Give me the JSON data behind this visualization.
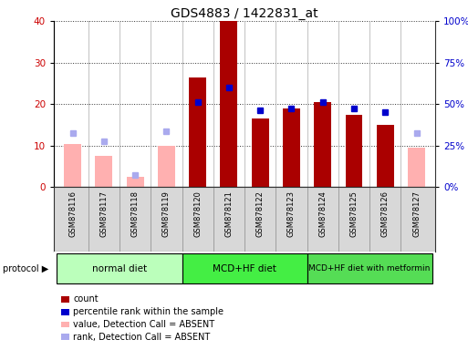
{
  "title": "GDS4883 / 1422831_at",
  "samples": [
    "GSM878116",
    "GSM878117",
    "GSM878118",
    "GSM878119",
    "GSM878120",
    "GSM878121",
    "GSM878122",
    "GSM878123",
    "GSM878124",
    "GSM878125",
    "GSM878126",
    "GSM878127"
  ],
  "count_values": [
    null,
    null,
    null,
    null,
    26.5,
    40.0,
    16.5,
    19.0,
    20.5,
    17.5,
    15.0,
    null
  ],
  "percentile_values_left": [
    null,
    null,
    null,
    null,
    20.5,
    24.0,
    18.5,
    19.0,
    20.5,
    19.0,
    18.0,
    null
  ],
  "absent_value_values": [
    10.5,
    7.5,
    2.5,
    10.0,
    null,
    null,
    null,
    null,
    null,
    null,
    null,
    9.5
  ],
  "absent_rank_values": [
    13.0,
    11.0,
    3.0,
    13.5,
    null,
    null,
    null,
    null,
    null,
    null,
    null,
    13.0
  ],
  "count_color": "#aa0000",
  "percentile_color": "#0000cc",
  "absent_value_color": "#ffb0b0",
  "absent_rank_color": "#aaaaee",
  "ylim_left": [
    0,
    40
  ],
  "ylim_right": [
    0,
    100
  ],
  "yticks_left": [
    0,
    10,
    20,
    30,
    40
  ],
  "ytick_labels_right": [
    "0%",
    "25%",
    "50%",
    "75%",
    "100%"
  ],
  "protocol_groups": [
    {
      "label": "normal diet",
      "start": 0,
      "end": 3,
      "color": "#bbffbb"
    },
    {
      "label": "MCD+HF diet",
      "start": 4,
      "end": 7,
      "color": "#44ee44"
    },
    {
      "label": "MCD+HF diet with metformin",
      "start": 8,
      "end": 11,
      "color": "#55dd55"
    }
  ],
  "legend_items": [
    {
      "label": "count",
      "color": "#aa0000"
    },
    {
      "label": "percentile rank within the sample",
      "color": "#0000cc"
    },
    {
      "label": "value, Detection Call = ABSENT",
      "color": "#ffb0b0"
    },
    {
      "label": "rank, Detection Call = ABSENT",
      "color": "#aaaaee"
    }
  ],
  "bar_width": 0.55,
  "background_color": "#ffffff",
  "title_fontsize": 10,
  "tick_fontsize": 7.5,
  "sample_fontsize": 6.0
}
